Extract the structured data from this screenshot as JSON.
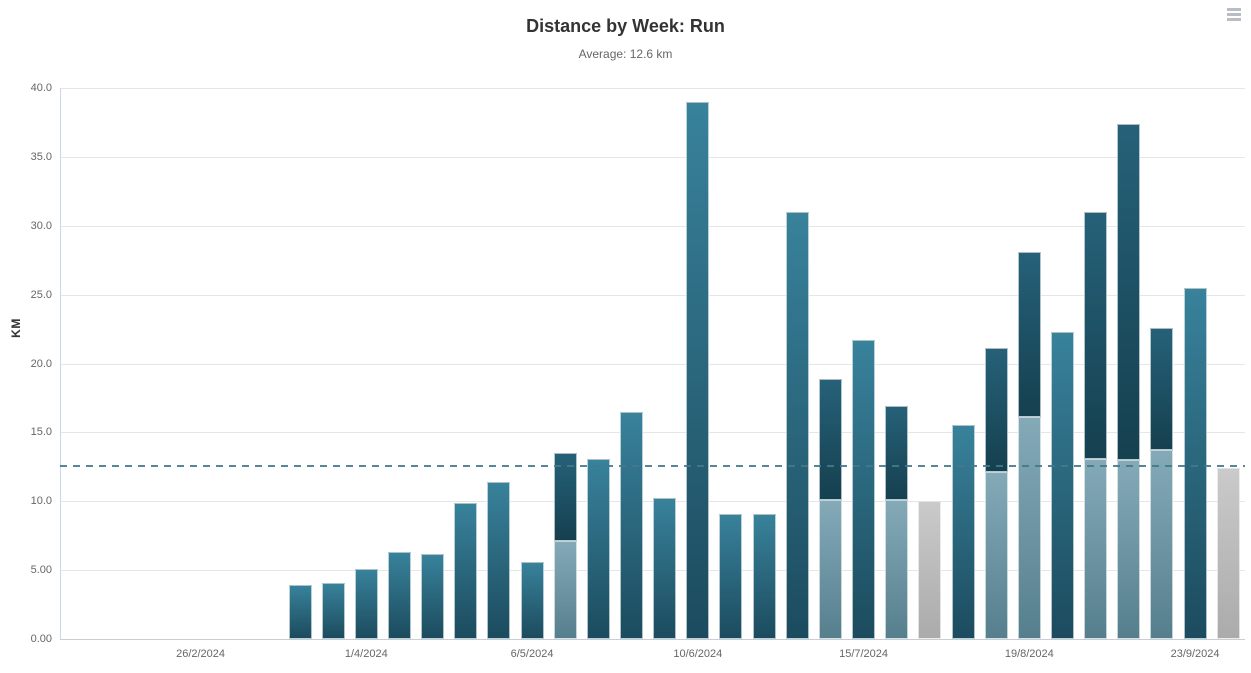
{
  "context_menu": {
    "icon": "hamburger-menu-icon"
  },
  "chart_data": {
    "type": "bar",
    "title": "Distance by Week: Run",
    "subtitle": "Average: 12.6 km",
    "xlabel": "",
    "ylabel": "KM",
    "ylim": [
      0,
      40
    ],
    "grid": true,
    "legend": false,
    "y_ticks": [
      {
        "value": 0,
        "label": "0.00"
      },
      {
        "value": 5,
        "label": "5.00"
      },
      {
        "value": 10,
        "label": "10.0"
      },
      {
        "value": 15,
        "label": "15.0"
      },
      {
        "value": 20,
        "label": "20.0"
      },
      {
        "value": 25,
        "label": "25.0"
      },
      {
        "value": 30,
        "label": "30.0"
      },
      {
        "value": 35,
        "label": "35.0"
      },
      {
        "value": 40,
        "label": "40.0"
      }
    ],
    "x_tick_labels": [
      {
        "label": "26/2/2024",
        "week_offset": -3
      },
      {
        "label": "1/4/2024",
        "week_offset": 2
      },
      {
        "label": "6/5/2024",
        "week_offset": 7
      },
      {
        "label": "10/6/2024",
        "week_offset": 12
      },
      {
        "label": "15/7/2024",
        "week_offset": 17
      },
      {
        "label": "19/8/2024",
        "week_offset": 22
      },
      {
        "label": "23/9/2024",
        "week_offset": 27
      }
    ],
    "average_line": {
      "value": 12.6
    },
    "bars": [
      {
        "week": "18/3/2024",
        "total": 3.9,
        "style": "teal"
      },
      {
        "week": "25/3/2024",
        "total": 4.1,
        "style": "teal"
      },
      {
        "week": "1/4/2024",
        "total": 5.1,
        "style": "teal"
      },
      {
        "week": "8/4/2024",
        "total": 6.3,
        "style": "teal"
      },
      {
        "week": "15/4/2024",
        "total": 6.2,
        "style": "teal"
      },
      {
        "week": "22/4/2024",
        "total": 9.9,
        "style": "teal"
      },
      {
        "week": "29/4/2024",
        "total": 11.4,
        "style": "teal"
      },
      {
        "week": "6/5/2024",
        "total": 5.6,
        "style": "teal"
      },
      {
        "week": "13/5/2024",
        "total": 13.5,
        "style": "stacked",
        "light_bottom": 7.1
      },
      {
        "week": "20/5/2024",
        "total": 13.1,
        "style": "teal"
      },
      {
        "week": "27/5/2024",
        "total": 16.5,
        "style": "teal"
      },
      {
        "week": "3/6/2024",
        "total": 10.2,
        "style": "teal"
      },
      {
        "week": "10/6/2024",
        "total": 39.0,
        "style": "teal"
      },
      {
        "week": "17/6/2024",
        "total": 9.1,
        "style": "teal"
      },
      {
        "week": "24/6/2024",
        "total": 9.1,
        "style": "teal"
      },
      {
        "week": "1/7/2024",
        "total": 31.0,
        "style": "teal"
      },
      {
        "week": "8/7/2024",
        "total": 18.9,
        "style": "stacked",
        "light_bottom": 10.1
      },
      {
        "week": "15/7/2024",
        "total": 21.7,
        "style": "teal"
      },
      {
        "week": "22/7/2024",
        "total": 16.9,
        "style": "stacked",
        "light_bottom": 10.1
      },
      {
        "week": "29/7/2024",
        "total": 10.0,
        "style": "gray"
      },
      {
        "week": "5/8/2024",
        "total": 15.5,
        "style": "teal"
      },
      {
        "week": "12/8/2024",
        "total": 21.1,
        "style": "stacked",
        "light_bottom": 12.1
      },
      {
        "week": "19/8/2024",
        "total": 28.1,
        "style": "stacked",
        "light_bottom": 16.1
      },
      {
        "week": "26/8/2024",
        "total": 22.3,
        "style": "teal"
      },
      {
        "week": "2/9/2024",
        "total": 31.0,
        "style": "stacked",
        "light_bottom": 13.1
      },
      {
        "week": "9/9/2024",
        "total": 37.4,
        "style": "stacked",
        "light_bottom": 13.0
      },
      {
        "week": "16/9/2024",
        "total": 22.6,
        "style": "stacked",
        "light_bottom": 13.7
      },
      {
        "week": "23/9/2024",
        "total": 25.5,
        "style": "teal"
      },
      {
        "week": "30/9/2024",
        "total": 12.4,
        "style": "gray"
      }
    ],
    "colors": {
      "teal_top": "#38829b",
      "teal_bottom": "#1c4b5e",
      "dark_top": "#266179",
      "dark_bottom": "#15404f",
      "light_top": "#84aab8",
      "light_bottom": "#567f8e",
      "gray_top": "#cacaca",
      "gray_bottom": "#ababab",
      "average_line": "#44788c",
      "gridline": "#e6e6e6",
      "axis_line": "#ccd6eb"
    }
  }
}
